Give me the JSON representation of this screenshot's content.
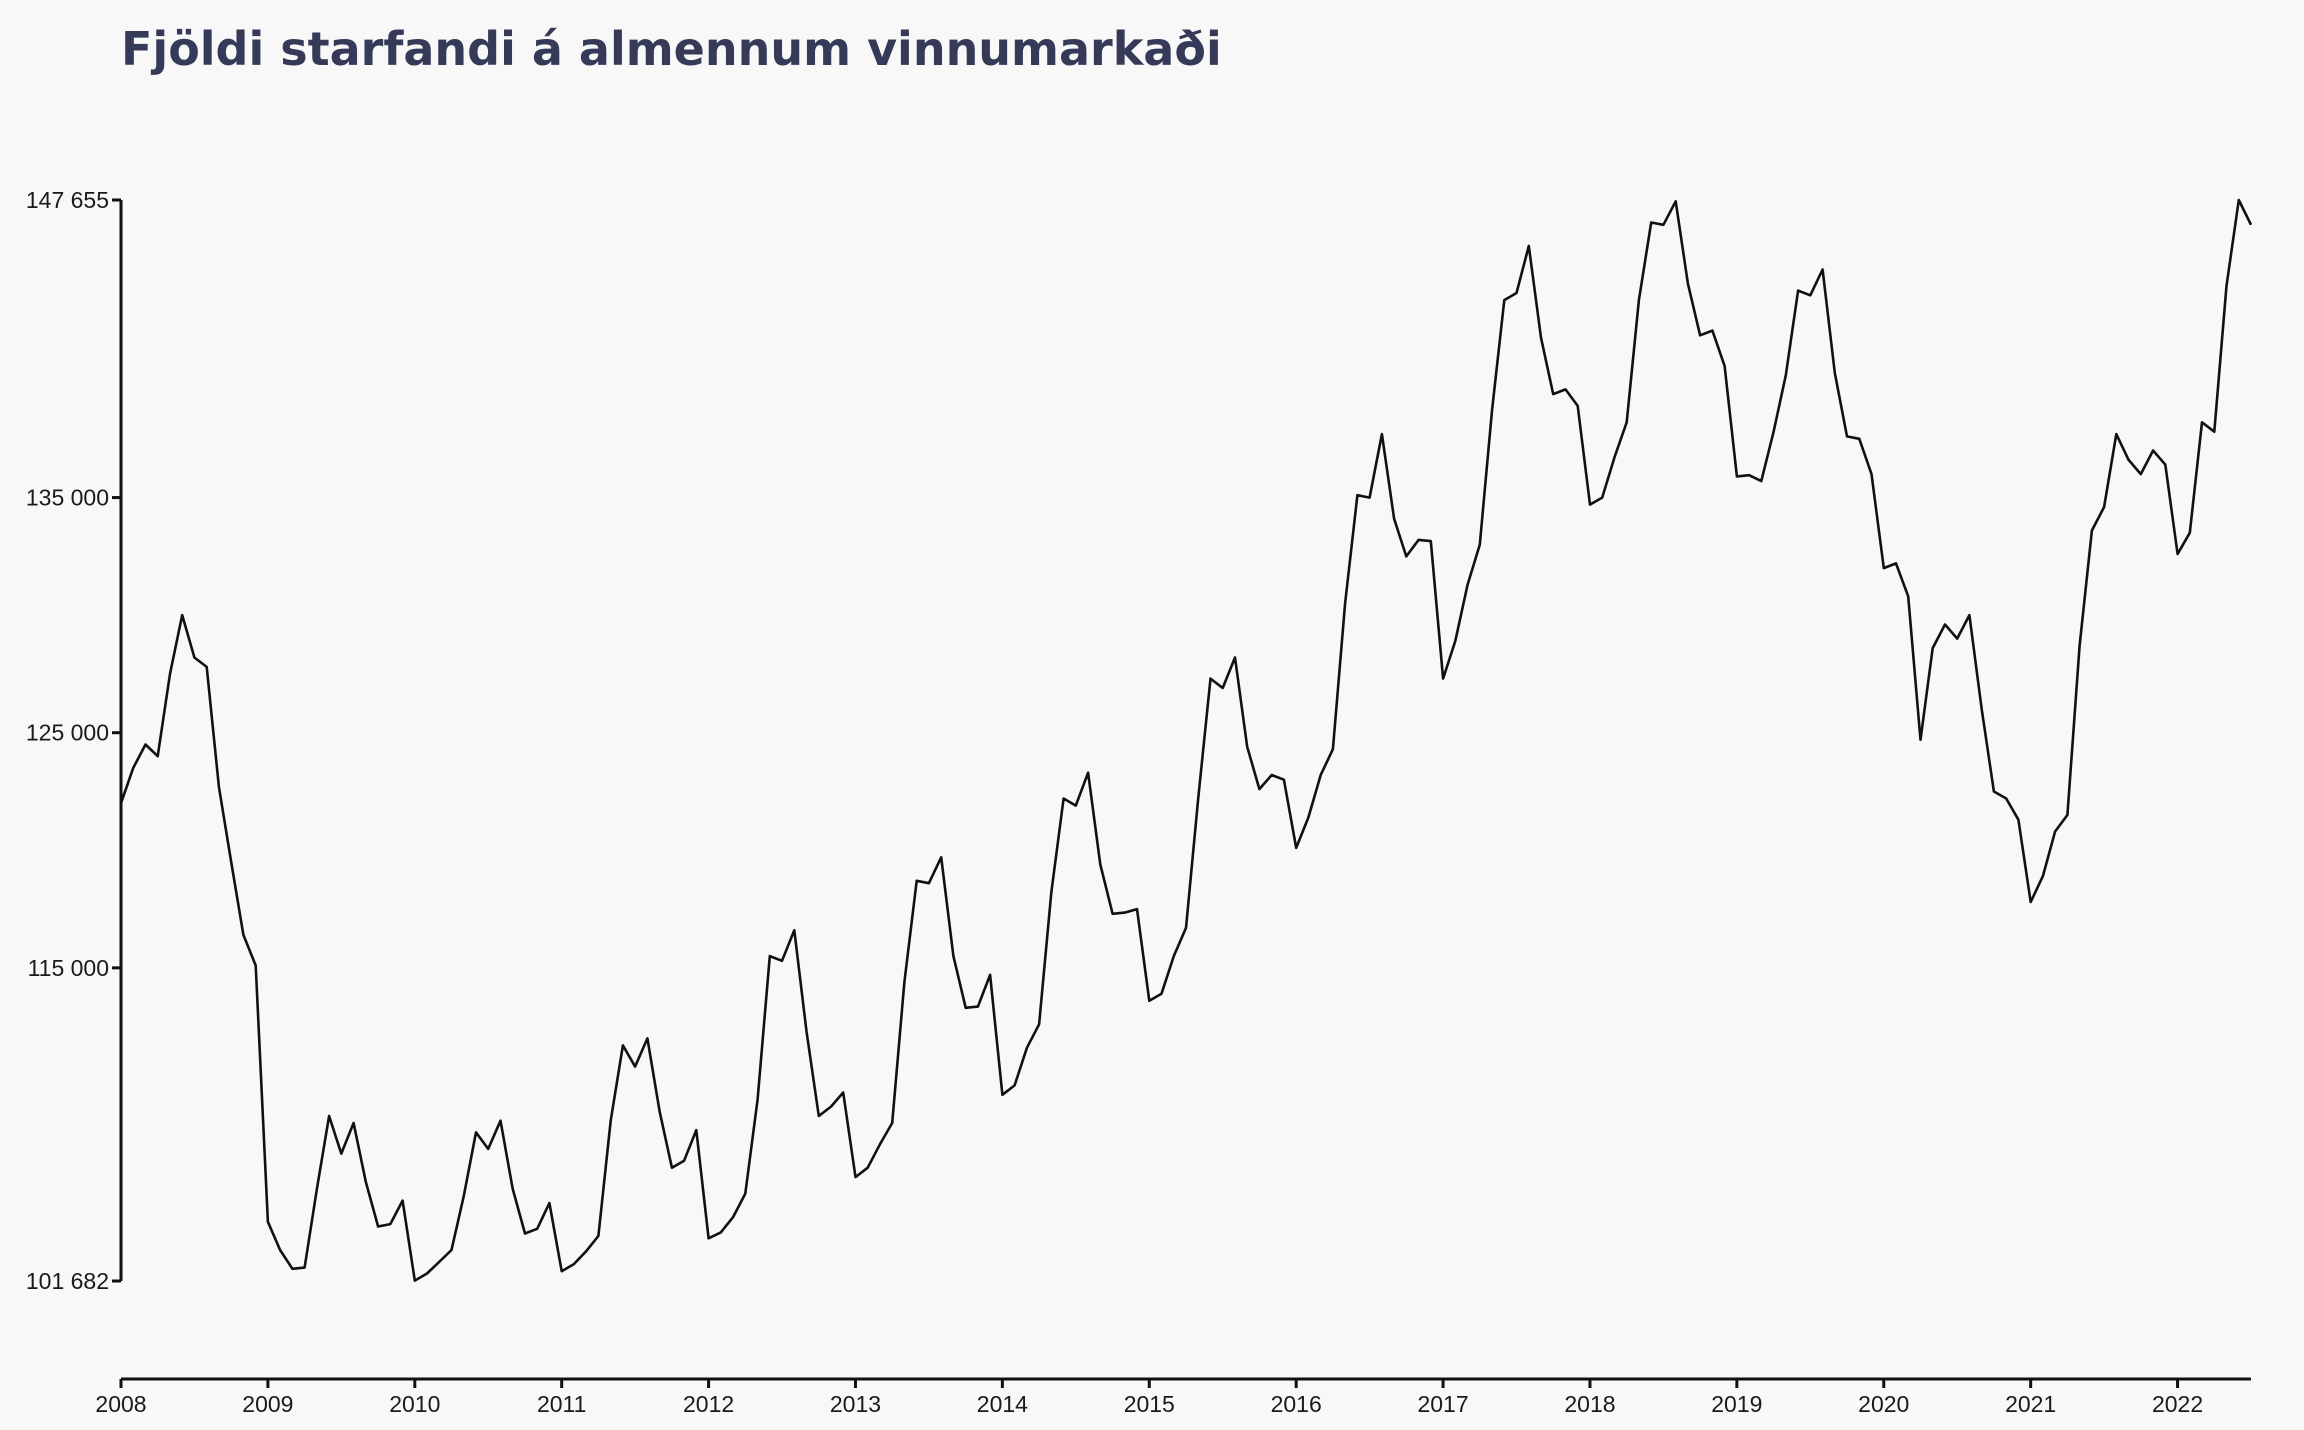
{
  "chart_data": {
    "type": "line",
    "title": "Fjöldi starfandi á almennum vinnumarkaði",
    "xlabel": "",
    "ylabel": "",
    "ylim": [
      101682,
      147655
    ],
    "xlim": [
      "2008-01",
      "2022-07"
    ],
    "grid": false,
    "legend": "none",
    "x_tick_labels": [
      "2008",
      "2009",
      "2010",
      "2011",
      "2012",
      "2013",
      "2014",
      "2015",
      "2016",
      "2017",
      "2018",
      "2019",
      "2020",
      "2021",
      "2022"
    ],
    "y_tick_labels": [
      {
        "value": 101682,
        "label": "101 682"
      },
      {
        "value": 115000,
        "label": "115 000"
      },
      {
        "value": 125000,
        "label": "125 000"
      },
      {
        "value": 135000,
        "label": "135 000"
      },
      {
        "value": 147655,
        "label": "147 655"
      }
    ],
    "line_color": "#111111",
    "series": [
      {
        "x_start": "2008-01",
        "frequency": "monthly",
        "values": [
          122000,
          123500,
          124500,
          124000,
          127500,
          130000,
          128200,
          127800,
          122700,
          119500,
          116400,
          115100,
          104200,
          103000,
          102200,
          102250,
          105600,
          108700,
          107100,
          108400,
          105900,
          104000,
          104100,
          105100,
          101700,
          102000,
          102500,
          103000,
          105300,
          108000,
          107300,
          108500,
          105600,
          103700,
          103900,
          105000,
          102100,
          102400,
          102950,
          103600,
          108500,
          111700,
          110800,
          112000,
          108900,
          106500,
          106800,
          108100,
          103500,
          103750,
          104400,
          105400,
          109400,
          115500,
          115300,
          116600,
          112300,
          108700,
          109100,
          109700,
          106100,
          106500,
          107500,
          108400,
          114400,
          118700,
          118600,
          119700,
          115500,
          113300,
          113350,
          114700,
          109600,
          110000,
          111600,
          112600,
          118200,
          122200,
          121900,
          123300,
          119400,
          117300,
          117350,
          117500,
          113600,
          113900,
          115500,
          116700,
          122200,
          127300,
          126900,
          128200,
          124400,
          122600,
          123200,
          123000,
          120100,
          121400,
          123200,
          124300,
          130500,
          135100,
          135000,
          137700,
          134100,
          132500,
          133200,
          133150,
          127300,
          128900,
          131300,
          133000,
          138700,
          143400,
          143700,
          145700,
          141800,
          139400,
          139600,
          138900,
          134700,
          135000,
          136700,
          138200,
          143400,
          146700,
          146600,
          147600,
          144100,
          141900,
          142100,
          140600,
          135900,
          135950,
          135700,
          137800,
          140200,
          143800,
          143600,
          144700,
          140300,
          137600,
          137500,
          136000,
          132000,
          132200,
          130800,
          124700,
          128600,
          129600,
          129000,
          130000,
          126000,
          122500,
          122200,
          121300,
          117800,
          118900,
          120800,
          121500,
          128700,
          133600,
          134600,
          137700,
          136600,
          136000,
          137000,
          136400,
          132600,
          133500,
          138200,
          137800,
          144000,
          147655,
          146600
        ]
      }
    ]
  }
}
